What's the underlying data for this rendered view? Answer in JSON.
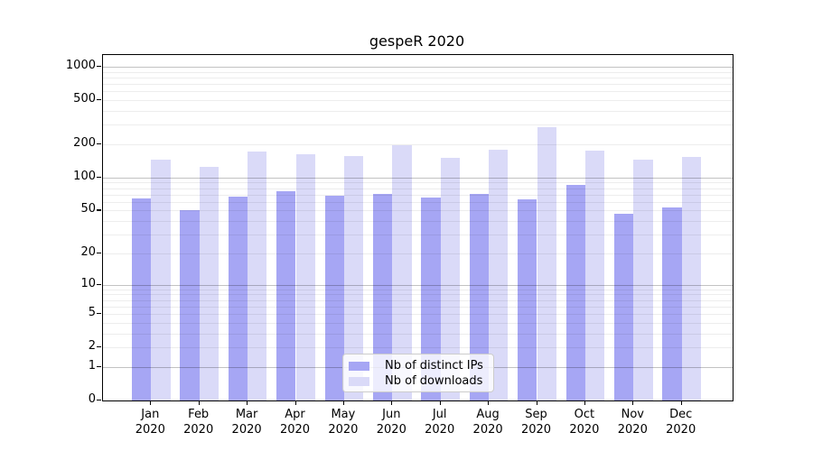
{
  "chart_data": {
    "type": "bar",
    "title": "gespeR 2020",
    "categories": [
      "Jan",
      "Feb",
      "Mar",
      "Apr",
      "May",
      "Jun",
      "Jul",
      "Aug",
      "Sep",
      "Oct",
      "Nov",
      "Dec"
    ],
    "year": "2020",
    "series": [
      {
        "key": "ips",
        "name": "Nb of distinct IPs",
        "color": "#a6a6f4",
        "values": [
          64,
          50,
          67,
          75,
          68,
          71,
          66,
          71,
          63,
          85,
          47,
          53
        ]
      },
      {
        "key": "downloads",
        "name": "Nb of downloads",
        "color": "#dadaf8",
        "values": [
          144,
          125,
          172,
          164,
          156,
          197,
          151,
          180,
          285,
          176,
          146,
          154
        ]
      }
    ],
    "yscale": "log1p",
    "yticks": [
      0,
      1,
      2,
      5,
      10,
      20,
      50,
      100,
      200,
      500,
      1000
    ],
    "ylim": [
      0,
      1275
    ],
    "grid": "horizontal (major + minor)",
    "legend_position": "lower center",
    "colors": {
      "bar_ips": "#a6a6f4",
      "bar_downloads": "#dadaf8",
      "major_grid": "#bdbdbd",
      "minor_grid": "#ebebeb",
      "axis": "#000000",
      "legend_border": "#cccccc"
    }
  }
}
